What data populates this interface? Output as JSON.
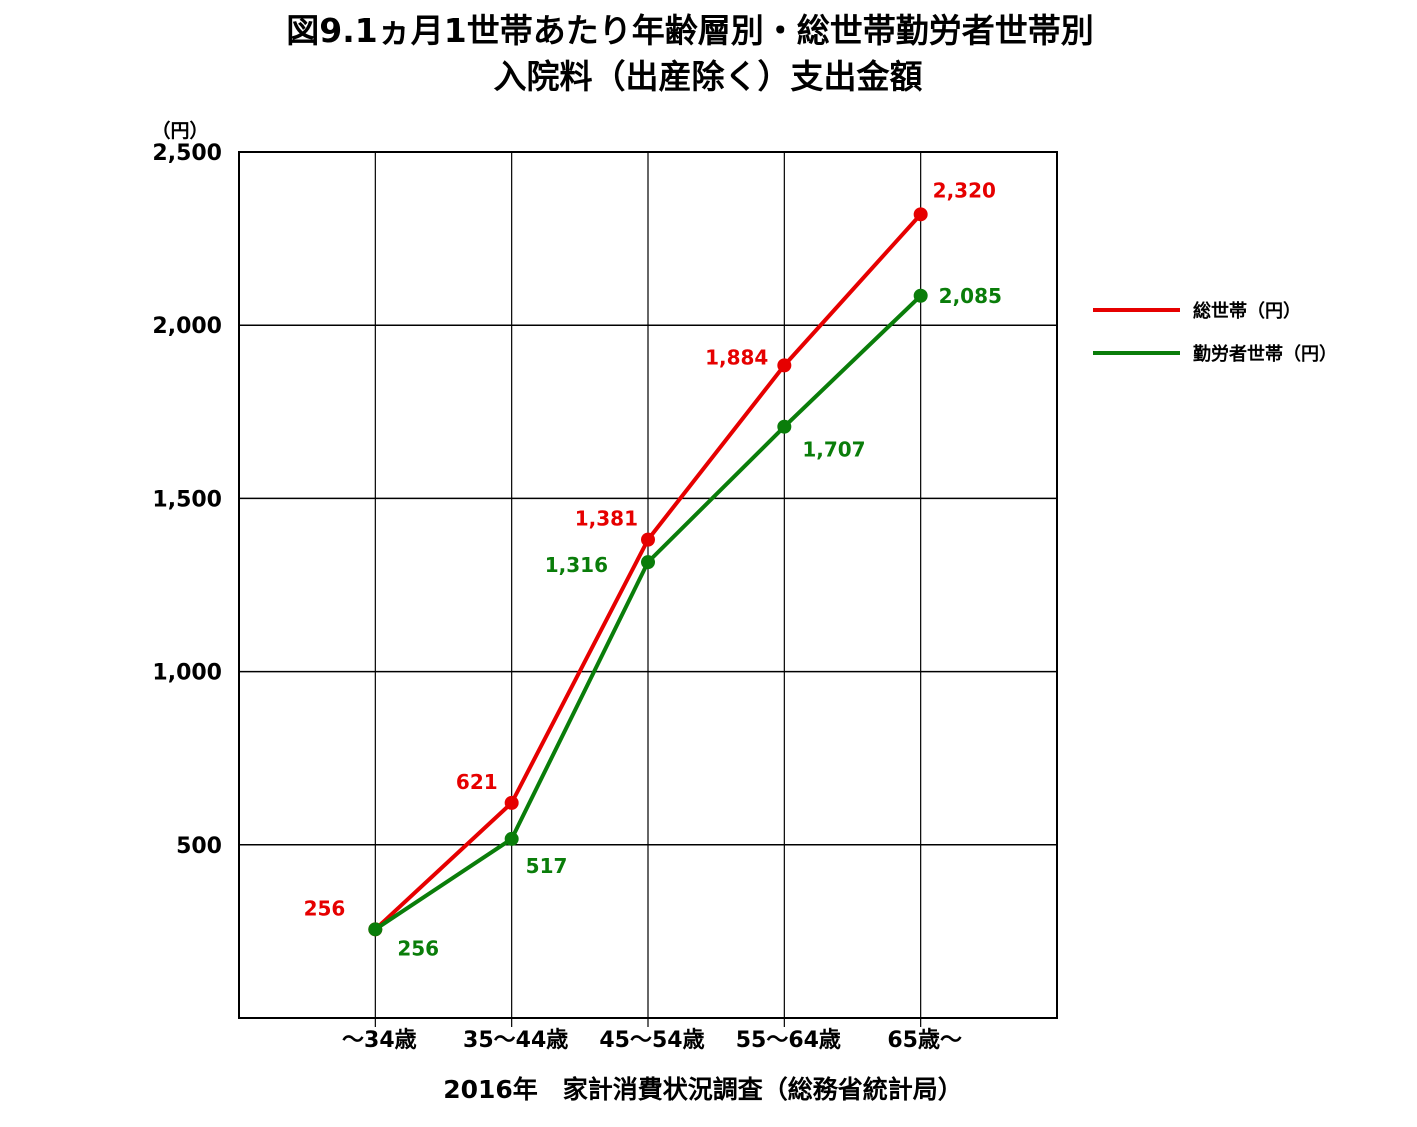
{
  "chart_data": {
    "type": "line",
    "title": [
      "図9.1ヵ月1世帯あたり年齢層別・総世帯勤労者世帯別",
      "入院料（出産除く）支出金額"
    ],
    "y_unit": "（円）",
    "categories": [
      "～34歳",
      "35～44歳",
      "45～54歳",
      "55～64歳",
      "65歳～"
    ],
    "ylim": [
      0,
      2500
    ],
    "yticks": [
      500,
      1000,
      1500,
      2000,
      2500
    ],
    "ytick_labels": [
      "500",
      "1,000",
      "1,500",
      "2,000",
      "2,500"
    ],
    "grid": true,
    "legend_position": "right",
    "series": [
      {
        "name": "総世帯（円）",
        "color": "#e60000",
        "values": [
          256,
          621,
          1381,
          1884,
          2320
        ],
        "labels": [
          "256",
          "621",
          "1,381",
          "1,884",
          "2,320"
        ]
      },
      {
        "name": "勤労者世帯（円）",
        "color": "#0a7d0a",
        "values": [
          256,
          517,
          1316,
          1707,
          2085
        ],
        "labels": [
          "256",
          "517",
          "1,316",
          "1,707",
          "2,085"
        ]
      }
    ],
    "source": "2016年　家計消費状況調査（総務省統計局）"
  }
}
